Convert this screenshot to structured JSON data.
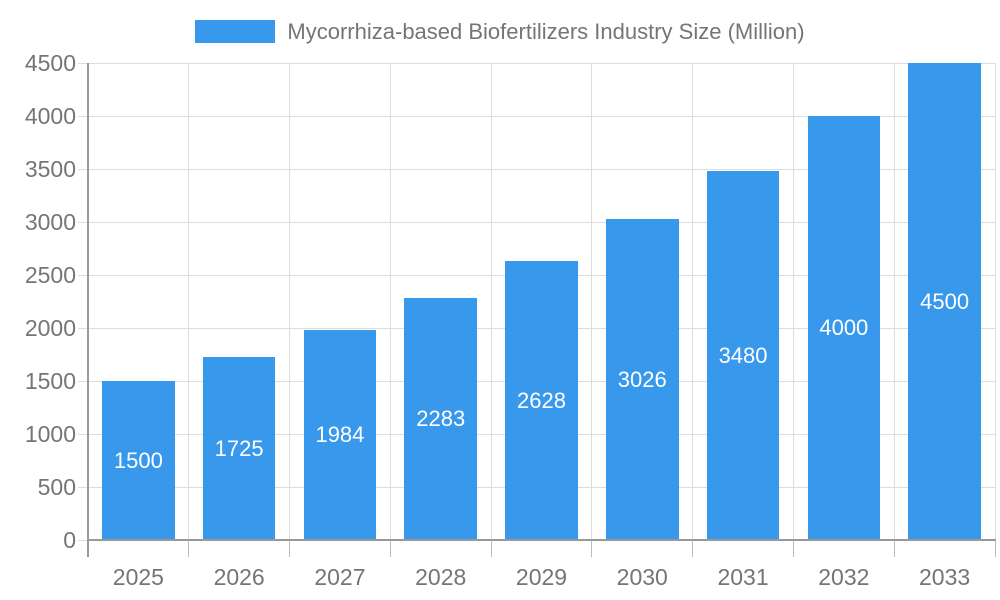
{
  "chart_data": {
    "type": "bar",
    "title": "Mycorrhiza-based Biofertilizers Industry Size (Million)",
    "categories": [
      "2025",
      "2026",
      "2027",
      "2028",
      "2029",
      "2030",
      "2031",
      "2032",
      "2033"
    ],
    "values": [
      1500,
      1725,
      1984,
      2283,
      2628,
      3026,
      3480,
      4000,
      4500
    ],
    "series": [
      {
        "name": "Mycorrhiza-based Biofertilizers Industry Size (Million)",
        "values": [
          1500,
          1725,
          1984,
          2283,
          2628,
          3026,
          3480,
          4000,
          4500
        ]
      }
    ],
    "xlabel": "",
    "ylabel": "",
    "ylim": [
      0,
      4500
    ],
    "ytick_step": 500,
    "ytick_labels": [
      "0",
      "500",
      "1000",
      "1500",
      "2000",
      "2500",
      "3000",
      "3500",
      "4000",
      "4500"
    ],
    "grid": true,
    "legend_position": "top",
    "bar_value_labels": [
      "1500",
      "1725",
      "1984",
      "2283",
      "2628",
      "3026",
      "3480",
      "4000",
      "4500"
    ]
  },
  "legend": {
    "label": "Mycorrhiza-based Biofertilizers Industry Size (Million)"
  },
  "colors": {
    "bar": "#3898EC",
    "bar_label_text": "#FFFFFF",
    "axis_text": "#757575",
    "title_text": "#757575",
    "gridline": "#DDDDDD",
    "tick": "#BBBBBB",
    "axis_line": "#999999",
    "background": "#FFFFFF"
  }
}
